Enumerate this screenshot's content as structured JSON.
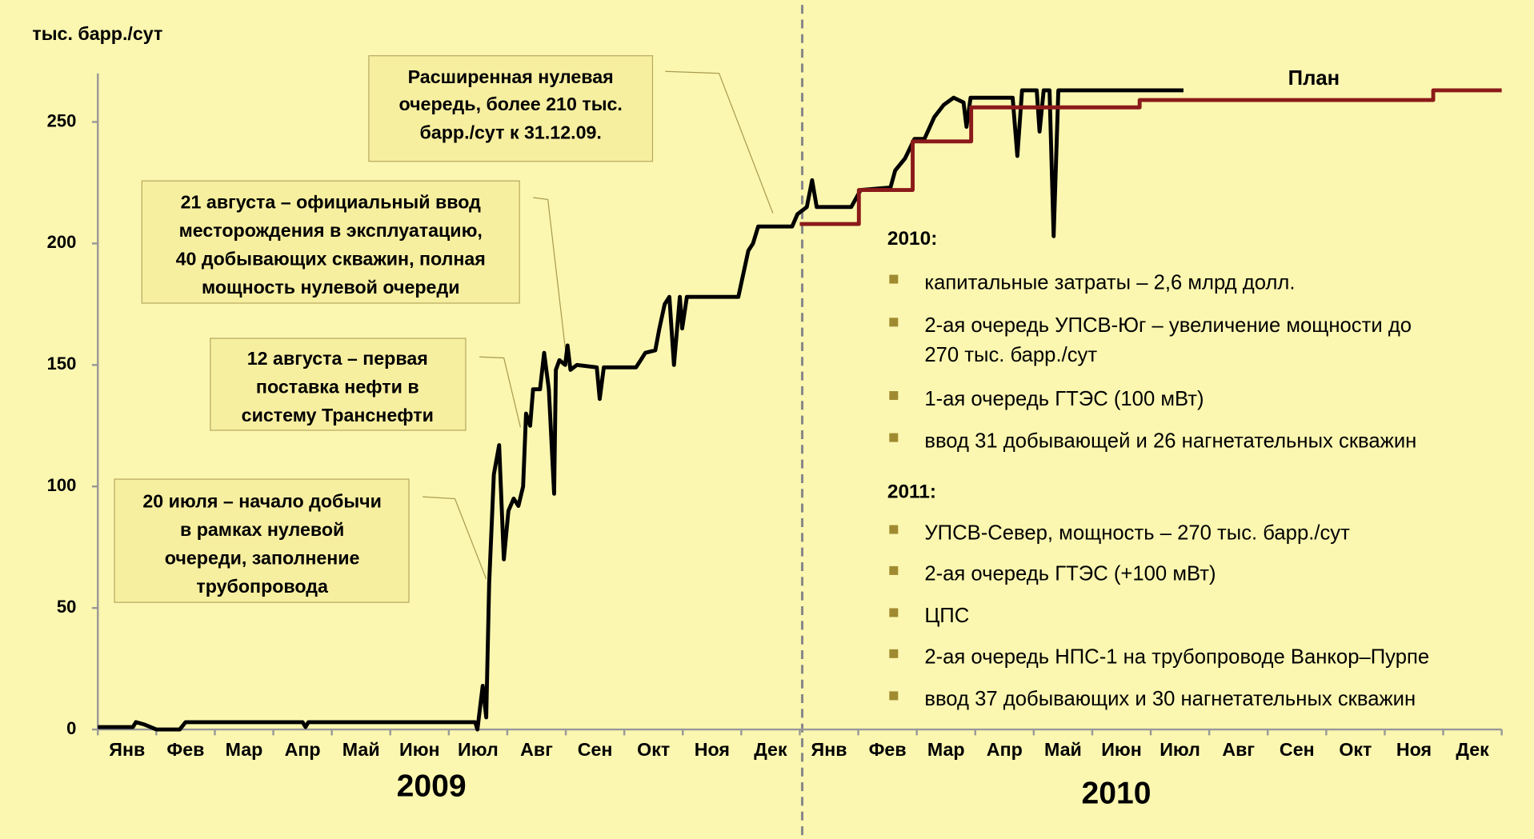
{
  "chart_data": {
    "type": "line",
    "ylabel": "тыс. барр./сут",
    "categories": [
      "Янв",
      "Фев",
      "Мар",
      "Апр",
      "Май",
      "Июн",
      "Июл",
      "Авг",
      "Сен",
      "Окт",
      "Ноя",
      "Дек",
      "Янв",
      "Фев",
      "Мар",
      "Апр",
      "Май",
      "Июн",
      "Июл",
      "Авг",
      "Сен",
      "Окт",
      "Ноя",
      "Дек"
    ],
    "year_labels": [
      "2009",
      "2010"
    ],
    "xlim": [
      0,
      24
    ],
    "ylim": [
      0,
      270
    ],
    "yticks": [
      0,
      50,
      100,
      150,
      200,
      250
    ],
    "series": [
      {
        "color": "#000000",
        "x": [
          0,
          0.6,
          0.65,
          0.8,
          0.9,
          1.0,
          1.4,
          1.5,
          2.0,
          3.5,
          3.55,
          3.6,
          5.0,
          6.45,
          6.49,
          6.58,
          6.64,
          6.69,
          6.77,
          6.86,
          6.94,
          7.02,
          7.11,
          7.19,
          7.27,
          7.32,
          7.39,
          7.44,
          7.56,
          7.63,
          7.71,
          7.8,
          7.83,
          7.89,
          7.99,
          8.03,
          8.08,
          8.19,
          8.53,
          8.58,
          8.65,
          9.2,
          9.28,
          9.36,
          9.53,
          9.6,
          9.69,
          9.77,
          9.85,
          9.95,
          9.99,
          10.07,
          10.95,
          11.12,
          11.2,
          11.29,
          11.87,
          11.96,
          12.12,
          12.21,
          12.29,
          12.88,
          13.04,
          13.55,
          13.63,
          13.8,
          13.96,
          14.13,
          14.3,
          14.46,
          14.63,
          14.8,
          14.85,
          14.92,
          15.64,
          15.72,
          15.8,
          16.05,
          16.1,
          16.17,
          16.27,
          16.34,
          16.42,
          18.56
        ],
        "values": [
          1,
          1,
          3,
          2,
          1,
          0,
          0,
          3,
          3,
          3,
          1,
          3,
          3,
          3,
          0,
          18,
          5,
          60,
          105,
          117,
          70,
          90,
          95,
          92,
          100,
          130,
          125,
          140,
          140,
          155,
          140,
          97,
          148,
          152,
          150,
          158,
          148,
          150,
          149,
          136,
          149,
          149,
          152,
          155,
          156,
          165,
          175,
          178,
          150,
          178,
          165,
          178,
          178,
          197,
          200,
          207,
          207,
          212,
          215,
          226,
          215,
          215,
          222,
          223,
          230,
          235,
          243,
          243,
          252,
          257,
          260,
          258,
          248,
          260,
          260,
          236,
          263,
          263,
          246,
          263,
          263,
          203,
          263,
          263
        ]
      },
      {
        "name": "План",
        "color": "#8b1a1a",
        "x": [
          12,
          13.01,
          13.01,
          13.93,
          13.93,
          14.93,
          14.93,
          17.81,
          17.81,
          22.83,
          22.83,
          24
        ],
        "values": [
          208,
          208,
          222,
          222,
          242,
          242,
          256,
          256,
          259,
          259,
          263,
          263
        ]
      }
    ],
    "annotations": [
      {
        "lines": [
          "Расширенная нулевая",
          "очередь, более 210 тыс.",
          "барр./сут к 31.12.09."
        ]
      },
      {
        "lines": [
          "21 августа – официальный ввод",
          "месторождения в эксплуатацию,",
          "40 добывающих скважин, полная",
          "мощность нулевой очереди"
        ]
      },
      {
        "lines": [
          "12 августа – первая",
          "поставка нефти в",
          "систему Транснефти"
        ]
      },
      {
        "lines": [
          "20 июля – начало добычи",
          "в рамках нулевой",
          "очереди, заполнение",
          "трубопровода"
        ]
      }
    ],
    "notes": [
      {
        "heading": "2010:",
        "items": [
          [
            "капитальные затраты – 2,6 млрд долл."
          ],
          [
            "2-ая очередь УПСВ-Юг – увеличение мощности до",
            "270 тыс. барр./сут"
          ],
          [
            "1-ая очередь ГТЭС (100 мВт)"
          ],
          [
            "ввод 31 добывающей и 26 нагнетательных скважин"
          ]
        ]
      },
      {
        "heading": "2011:",
        "items": [
          [
            "УПСВ-Север, мощность – 270 тыс. барр./сут"
          ],
          [
            "2-ая очередь ГТЭС (+100 мВт)"
          ],
          [
            "ЦПС"
          ],
          [
            "2-ая очередь НПС-1 на трубопроводе Ванкор–Пурпе"
          ],
          [
            "ввод 37 добывающих и 30 нагнетательных скважин"
          ]
        ]
      }
    ]
  }
}
